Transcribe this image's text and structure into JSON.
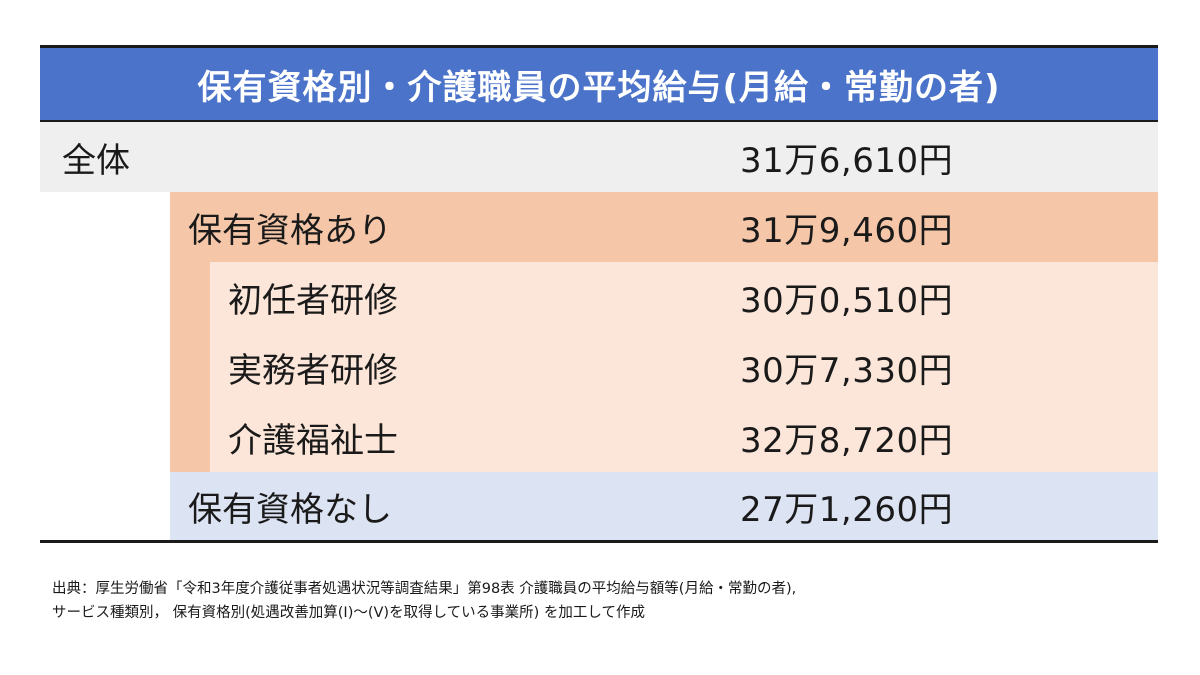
{
  "title": "保有資格別・介護職員の平均給与(月給・常勤の者)",
  "rows": {
    "all": {
      "label": "全体",
      "value": "31万6,610円"
    },
    "with_qualification": {
      "label": "保有資格あり",
      "value": "31万9,460円"
    },
    "sub": [
      {
        "label": "初任者研修",
        "value": "30万0,510円"
      },
      {
        "label": "実務者研修",
        "value": "30万7,330円"
      },
      {
        "label": "介護福祉士",
        "value": "32万8,720円"
      }
    ],
    "without_qualification": {
      "label": "保有資格なし",
      "value": "27万1,260円"
    }
  },
  "source": {
    "line1": "出典：厚生労働省「令和3年度介護従事者処遇状況等調査結果」第98表 介護職員の平均給与額等(月給・常勤の者),",
    "line2": "サービス種類別， 保有資格別(処遇改善加算(Ⅰ)～(Ⅴ)を取得している事業所) を加工して作成"
  },
  "colors": {
    "header": "#4a73c9",
    "all_row": "#efefef",
    "with_qualification_row": "#f5c7a8",
    "sub_rows": "#fce6d9",
    "without_qualification_row": "#dce3f3"
  }
}
